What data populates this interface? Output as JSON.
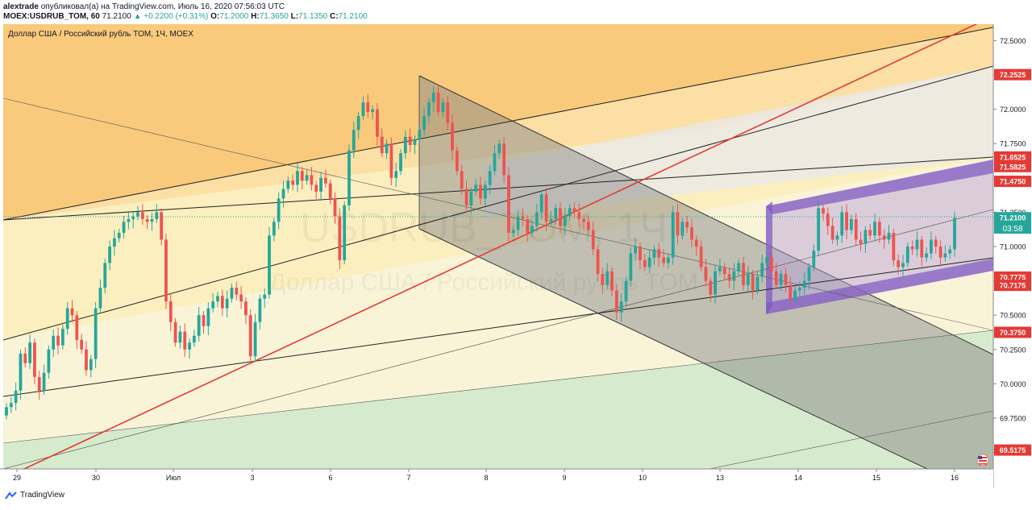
{
  "header": {
    "author": "alextrade",
    "published_text": "опубликовал(а) на TradingView.com, Июль 16, 2020 07:56:03 UTC",
    "symbol": "MOEX:USDRUB_TOM, 60",
    "last": "71.2100",
    "change": "▲ +0.2200 (+0.31%)",
    "o_label": "O:",
    "o": "71.2000",
    "h_label": "H:",
    "h": "71.3650",
    "l_label": "L:",
    "l": "71.1350",
    "c_label": "C:",
    "c": "71.2100"
  },
  "watermark": {
    "symbol": "USDRUB_TOM, 1Ч",
    "description": "Доллар США / Российский рубль TOM"
  },
  "countdown": "03:58",
  "footer": {
    "brand": "TradingView"
  },
  "colors": {
    "up": "#26a69a",
    "down": "#ef5350",
    "trendline": "#e53935",
    "orange_fan": "#f5a623",
    "yellow_fan": "#f9d648",
    "channel_gray": "#9e9e9e",
    "channel_purple": "#b39ddb",
    "green_zone": "#a5d6a7"
  },
  "chart_data": {
    "type": "candlestick",
    "title": "Доллар США / Российский рубль TOM, 1Ч, MOEX",
    "ylim": [
      69.38,
      72.62
    ],
    "y_ticks": [
      "72.5000",
      "72.2500",
      "72.0000",
      "71.7500",
      "71.5000",
      "71.2500",
      "71.0000",
      "70.7500",
      "70.5000",
      "70.2500",
      "70.0000",
      "69.7500",
      "69.5000"
    ],
    "x_ticks": [
      "29",
      "30",
      "Июл",
      "3",
      "6",
      "7",
      "8",
      "9",
      "10",
      "13",
      "14",
      "15",
      "16"
    ],
    "price_badges": [
      {
        "label": "72.2525",
        "value": 72.2525,
        "kind": "red"
      },
      {
        "label": "71.6525",
        "value": 71.6525,
        "kind": "red"
      },
      {
        "label": "71.5825",
        "value": 71.5825,
        "kind": "red"
      },
      {
        "label": "71.4750",
        "value": 71.475,
        "kind": "red"
      },
      {
        "label": "71.2100",
        "value": 71.21,
        "kind": "last"
      },
      {
        "label": "70.7775",
        "value": 70.7775,
        "kind": "red"
      },
      {
        "label": "70.7175",
        "value": 70.7175,
        "kind": "red"
      },
      {
        "label": "70.3750",
        "value": 70.375,
        "kind": "red"
      },
      {
        "label": "69.5175",
        "value": 69.5175,
        "kind": "red"
      }
    ],
    "closes": [
      69.83,
      69.86,
      69.95,
      70.22,
      70.15,
      70.3,
      70.05,
      69.95,
      70.08,
      70.25,
      70.35,
      70.28,
      70.4,
      70.55,
      70.5,
      70.32,
      70.25,
      70.1,
      70.18,
      70.55,
      70.7,
      70.88,
      71.0,
      71.06,
      71.1,
      71.18,
      71.2,
      71.22,
      71.25,
      71.2,
      71.18,
      71.2,
      71.25,
      71.05,
      70.6,
      70.45,
      70.3,
      70.38,
      70.25,
      70.3,
      70.35,
      70.5,
      70.42,
      70.55,
      70.6,
      70.64,
      70.55,
      70.62,
      70.7,
      70.65,
      70.6,
      70.5,
      70.2,
      70.45,
      70.62,
      70.65,
      71.08,
      71.18,
      71.35,
      71.42,
      71.48,
      71.45,
      71.55,
      71.48,
      71.52,
      71.45,
      71.4,
      71.5,
      71.46,
      71.35,
      71.22,
      70.9,
      71.3,
      71.7,
      71.85,
      71.95,
      72.05,
      71.98,
      72.0,
      71.8,
      71.68,
      71.75,
      71.5,
      71.55,
      71.68,
      71.8,
      71.74,
      71.78,
      71.85,
      71.95,
      72.05,
      72.12,
      71.98,
      72.05,
      71.9,
      71.7,
      71.55,
      71.42,
      71.3,
      71.4,
      71.45,
      71.35,
      71.45,
      71.55,
      71.68,
      71.75,
      71.52,
      71.1,
      71.12,
      71.22,
      71.2,
      71.1,
      71.15,
      71.25,
      71.38,
      71.18,
      71.2,
      71.28,
      71.15,
      71.22,
      71.28,
      71.25,
      71.2,
      71.18,
      71.12,
      70.98,
      70.8,
      70.72,
      70.82,
      70.68,
      70.52,
      70.6,
      70.75,
      70.95,
      71.0,
      70.9,
      70.85,
      70.92,
      70.98,
      70.92,
      70.88,
      70.92,
      71.25,
      71.08,
      71.18,
      71.14,
      71.05,
      71.0,
      70.85,
      70.75,
      70.65,
      70.82,
      70.85,
      70.8,
      70.75,
      70.82,
      70.88,
      70.72,
      70.8,
      70.68,
      70.78,
      70.88,
      70.92,
      70.82,
      70.72,
      70.8,
      70.72,
      70.62,
      70.68,
      70.7,
      70.75,
      70.85,
      70.97,
      71.28,
      71.24,
      71.15,
      71.05,
      71.08,
      71.25,
      71.12,
      71.2,
      71.05,
      71.02,
      71.12,
      71.08,
      71.18,
      71.08,
      71.05,
      71.1,
      70.9,
      70.85,
      70.88,
      71.0,
      70.98,
      71.05,
      70.92,
      70.95,
      71.05,
      71.0,
      70.92,
      70.95,
      70.98,
      71.21
    ],
    "volume_label": ""
  }
}
